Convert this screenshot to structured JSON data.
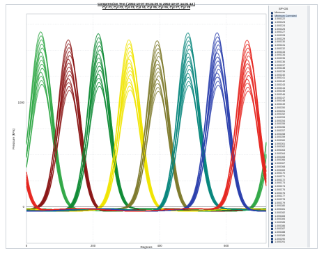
{
  "chart_data": {
    "type": "line",
    "title": "Compression Test ( 2002-10-07 00:34:00 to 2002-10-07 14:01:13 )",
    "subtitle": "Cyl #1, Cyl #2, Cyl #3, Cyl #4, Cyl #5, Cyl #6, Cyl #7, Cyl #8",
    "xlabel": "Degrees",
    "ylabel": "Pressure (kPa)",
    "xlim": [
      0,
      720
    ],
    "ylim": [
      -350,
      1850
    ],
    "x_ticks": [
      "0",
      "200",
      "400",
      "600"
    ],
    "y_ticks": [
      "0",
      "1000"
    ],
    "grid": true,
    "series": [
      {
        "color": "#31a846",
        "peak_x": 45,
        "peak_y": 1700,
        "spread": 0.85
      },
      {
        "color": "#8b1616",
        "peak_x": 128,
        "peak_y": 1630,
        "spread": 0.85
      },
      {
        "color": "#0e8a35",
        "peak_x": 218,
        "peak_y": 1700,
        "spread": 0.85
      },
      {
        "color": "#f0e400",
        "peak_x": 310,
        "peak_y": 1620,
        "spread": 0.85
      },
      {
        "color": "#7e7a2c",
        "peak_x": 395,
        "peak_y": 1630,
        "spread": 0.85
      },
      {
        "color": "#06857c",
        "peak_x": 487,
        "peak_y": 1700,
        "spread": 0.85
      },
      {
        "color": "#2a3fad",
        "peak_x": 575,
        "peak_y": 1690,
        "spread": 0.85
      },
      {
        "color": "#e5251f",
        "peak_x": 665,
        "peak_y": 1640,
        "spread": 0.85
      }
    ]
  },
  "legend": {
    "title": "SP-OS",
    "entries": [
      "Minimum",
      "Minimum Corrected",
      "1.000222",
      "1.000223",
      "1.000224",
      "1.000225",
      "1.000227",
      "1.000228",
      "1.000229",
      "1.000230",
      "1.000231",
      "1.000232",
      "1.000233",
      "1.000234",
      "1.000235",
      "1.000236",
      "1.000237",
      "1.000238",
      "1.000239",
      "1.000240",
      "1.000241",
      "1.000242",
      "1.000243",
      "1.000244",
      "1.000245",
      "1.000246",
      "1.000247",
      "1.000248",
      "1.000249",
      "1.000250",
      "1.000251",
      "1.000252",
      "1.000253",
      "1.000254",
      "1.000255",
      "1.000256",
      "1.000257",
      "1.000258",
      "1.000259",
      "1.000260",
      "1.000261",
      "1.000262",
      "1.000263",
      "1.000264",
      "1.000265",
      "1.000266",
      "1.000267",
      "1.000268",
      "1.000269",
      "1.000270",
      "1.000271",
      "1.000272",
      "1.000273",
      "1.000274",
      "1.000275",
      "1.000276",
      "1.000277",
      "1.000278",
      "1.000279",
      "1.000280",
      "1.000281",
      "1.000282",
      "1.000283",
      "1.000284",
      "1.000285",
      "1.000286",
      "1.000287",
      "1.000288",
      "1.000289",
      "1.000290",
      "1.000291"
    ]
  }
}
